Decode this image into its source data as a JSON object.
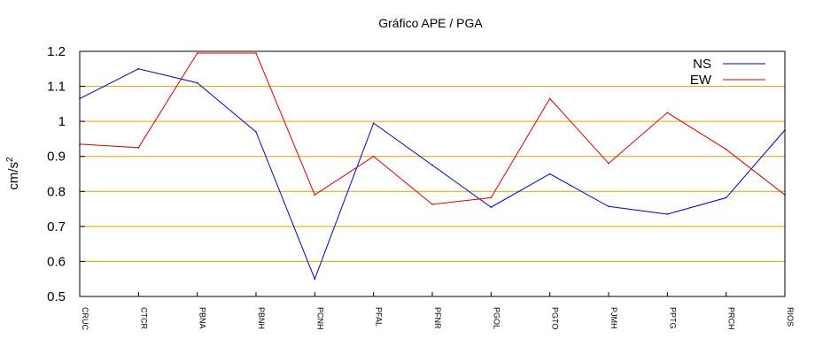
{
  "chart_data": {
    "type": "line",
    "title": "Gráfico  APE / PGA",
    "xlabel": "",
    "ylabel": "cm/s",
    "ylabel_exponent": "2",
    "categories": [
      "CRUC",
      "CTCR",
      "PBNA",
      "PBNH",
      "PCNH",
      "PFAL",
      "PFNR",
      "PGOL",
      "PGTO",
      "PJMH",
      "PPTG",
      "PRCH",
      "RIOS"
    ],
    "ylim": [
      0.5,
      1.2
    ],
    "yticks": [
      "0.5",
      "0.6",
      "0.7",
      "0.8",
      "0.9",
      "1",
      "1.1",
      "1.2"
    ],
    "grid": "horizontal",
    "legend_position": "top-right",
    "series": [
      {
        "name": "NS",
        "color": "#0000cc",
        "values": [
          1.065,
          1.15,
          1.11,
          0.97,
          0.55,
          0.995,
          0.875,
          0.755,
          0.85,
          0.757,
          0.735,
          0.782,
          0.975
        ]
      },
      {
        "name": "EW",
        "color": "#dd0000",
        "values": [
          0.935,
          0.925,
          1.195,
          1.195,
          0.79,
          0.9,
          0.763,
          0.782,
          1.065,
          0.88,
          1.025,
          0.92,
          0.79
        ]
      }
    ],
    "grid_color": "#d4a600"
  }
}
